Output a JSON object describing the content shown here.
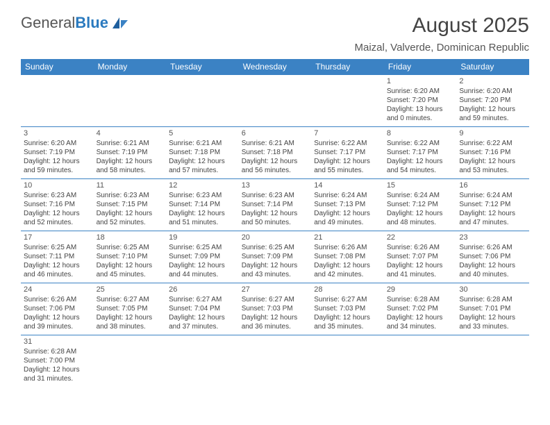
{
  "logo": {
    "text1": "General",
    "text2": "Blue"
  },
  "title": "August 2025",
  "location": "Maizal, Valverde, Dominican Republic",
  "colors": {
    "header_bg": "#3b82c4",
    "header_text": "#ffffff",
    "border": "#3b82c4",
    "logo_blue": "#2a7abf",
    "text": "#444444"
  },
  "dayHeaders": [
    "Sunday",
    "Monday",
    "Tuesday",
    "Wednesday",
    "Thursday",
    "Friday",
    "Saturday"
  ],
  "weeks": [
    [
      null,
      null,
      null,
      null,
      null,
      {
        "n": "1",
        "sr": "6:20 AM",
        "ss": "7:20 PM",
        "dl": "13 hours and 0 minutes."
      },
      {
        "n": "2",
        "sr": "6:20 AM",
        "ss": "7:20 PM",
        "dl": "12 hours and 59 minutes."
      }
    ],
    [
      {
        "n": "3",
        "sr": "6:20 AM",
        "ss": "7:19 PM",
        "dl": "12 hours and 59 minutes."
      },
      {
        "n": "4",
        "sr": "6:21 AM",
        "ss": "7:19 PM",
        "dl": "12 hours and 58 minutes."
      },
      {
        "n": "5",
        "sr": "6:21 AM",
        "ss": "7:18 PM",
        "dl": "12 hours and 57 minutes."
      },
      {
        "n": "6",
        "sr": "6:21 AM",
        "ss": "7:18 PM",
        "dl": "12 hours and 56 minutes."
      },
      {
        "n": "7",
        "sr": "6:22 AM",
        "ss": "7:17 PM",
        "dl": "12 hours and 55 minutes."
      },
      {
        "n": "8",
        "sr": "6:22 AM",
        "ss": "7:17 PM",
        "dl": "12 hours and 54 minutes."
      },
      {
        "n": "9",
        "sr": "6:22 AM",
        "ss": "7:16 PM",
        "dl": "12 hours and 53 minutes."
      }
    ],
    [
      {
        "n": "10",
        "sr": "6:23 AM",
        "ss": "7:16 PM",
        "dl": "12 hours and 52 minutes."
      },
      {
        "n": "11",
        "sr": "6:23 AM",
        "ss": "7:15 PM",
        "dl": "12 hours and 52 minutes."
      },
      {
        "n": "12",
        "sr": "6:23 AM",
        "ss": "7:14 PM",
        "dl": "12 hours and 51 minutes."
      },
      {
        "n": "13",
        "sr": "6:23 AM",
        "ss": "7:14 PM",
        "dl": "12 hours and 50 minutes."
      },
      {
        "n": "14",
        "sr": "6:24 AM",
        "ss": "7:13 PM",
        "dl": "12 hours and 49 minutes."
      },
      {
        "n": "15",
        "sr": "6:24 AM",
        "ss": "7:12 PM",
        "dl": "12 hours and 48 minutes."
      },
      {
        "n": "16",
        "sr": "6:24 AM",
        "ss": "7:12 PM",
        "dl": "12 hours and 47 minutes."
      }
    ],
    [
      {
        "n": "17",
        "sr": "6:25 AM",
        "ss": "7:11 PM",
        "dl": "12 hours and 46 minutes."
      },
      {
        "n": "18",
        "sr": "6:25 AM",
        "ss": "7:10 PM",
        "dl": "12 hours and 45 minutes."
      },
      {
        "n": "19",
        "sr": "6:25 AM",
        "ss": "7:09 PM",
        "dl": "12 hours and 44 minutes."
      },
      {
        "n": "20",
        "sr": "6:25 AM",
        "ss": "7:09 PM",
        "dl": "12 hours and 43 minutes."
      },
      {
        "n": "21",
        "sr": "6:26 AM",
        "ss": "7:08 PM",
        "dl": "12 hours and 42 minutes."
      },
      {
        "n": "22",
        "sr": "6:26 AM",
        "ss": "7:07 PM",
        "dl": "12 hours and 41 minutes."
      },
      {
        "n": "23",
        "sr": "6:26 AM",
        "ss": "7:06 PM",
        "dl": "12 hours and 40 minutes."
      }
    ],
    [
      {
        "n": "24",
        "sr": "6:26 AM",
        "ss": "7:06 PM",
        "dl": "12 hours and 39 minutes."
      },
      {
        "n": "25",
        "sr": "6:27 AM",
        "ss": "7:05 PM",
        "dl": "12 hours and 38 minutes."
      },
      {
        "n": "26",
        "sr": "6:27 AM",
        "ss": "7:04 PM",
        "dl": "12 hours and 37 minutes."
      },
      {
        "n": "27",
        "sr": "6:27 AM",
        "ss": "7:03 PM",
        "dl": "12 hours and 36 minutes."
      },
      {
        "n": "28",
        "sr": "6:27 AM",
        "ss": "7:03 PM",
        "dl": "12 hours and 35 minutes."
      },
      {
        "n": "29",
        "sr": "6:28 AM",
        "ss": "7:02 PM",
        "dl": "12 hours and 34 minutes."
      },
      {
        "n": "30",
        "sr": "6:28 AM",
        "ss": "7:01 PM",
        "dl": "12 hours and 33 minutes."
      }
    ],
    [
      {
        "n": "31",
        "sr": "6:28 AM",
        "ss": "7:00 PM",
        "dl": "12 hours and 31 minutes."
      },
      null,
      null,
      null,
      null,
      null,
      null
    ]
  ],
  "labels": {
    "sunrise": "Sunrise:",
    "sunset": "Sunset:",
    "daylight": "Daylight:"
  }
}
